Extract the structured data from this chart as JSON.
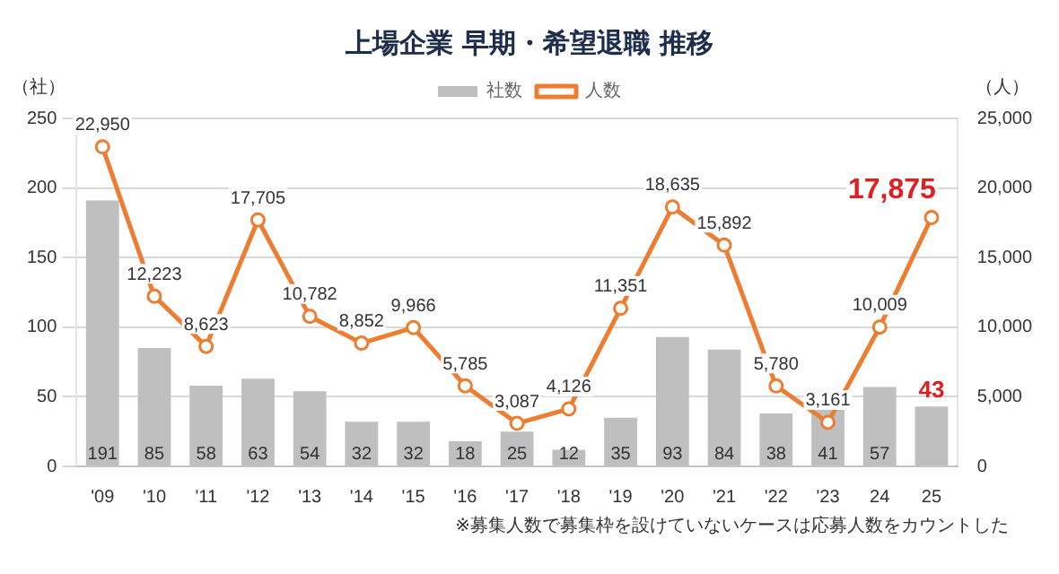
{
  "chart_data": {
    "type": "bar",
    "title": "上場企業 早期・希望退職 推移",
    "categories": [
      "'09",
      "'10",
      "'11",
      "'12",
      "'13",
      "'14",
      "'15",
      "'16",
      "'17",
      "'18",
      "'19",
      "'20",
      "'21",
      "'22",
      "'23",
      "24",
      "25"
    ],
    "series": [
      {
        "name": "社数",
        "color": "#bfbfbf",
        "values": [
          191,
          85,
          58,
          63,
          54,
          32,
          32,
          18,
          25,
          12,
          35,
          93,
          84,
          38,
          41,
          57,
          43
        ]
      },
      {
        "name": "人数",
        "type": "line",
        "axis": "y2",
        "color": "#ed7d31",
        "marker": "circle",
        "values": [
          22950,
          12223,
          8623,
          17705,
          10782,
          8852,
          9966,
          5785,
          3087,
          4126,
          11351,
          18635,
          15892,
          5780,
          3161,
          10009,
          17875
        ],
        "value_labels": [
          "22,950",
          "12,223",
          "8,623",
          "17,705",
          "10,782",
          "8,852",
          "9,966",
          "5,785",
          "3,087",
          "4,126",
          "11,351",
          "18,635",
          "15,892",
          "5,780",
          "3,161",
          "10,009",
          "17,875"
        ]
      }
    ],
    "ylabel": "（社）",
    "y2label": "（人）",
    "ylim": [
      0,
      250
    ],
    "yticks": [
      0,
      50,
      100,
      150,
      200,
      250
    ],
    "y2lim": [
      0,
      25000
    ],
    "y2ticks": [
      {
        "value": 0,
        "label": "0"
      },
      {
        "value": 5000,
        "label": "5,000"
      },
      {
        "value": 10000,
        "label": "10,000"
      },
      {
        "value": 15000,
        "label": "15,000"
      },
      {
        "value": 20000,
        "label": "20,000"
      },
      {
        "value": 25000,
        "label": "25,000"
      }
    ],
    "grid": "y",
    "legend": "top",
    "data_labels": true,
    "annotations": [
      "※募集人数で募集枠を設けていないケースは応募人数をカウントした"
    ]
  }
}
